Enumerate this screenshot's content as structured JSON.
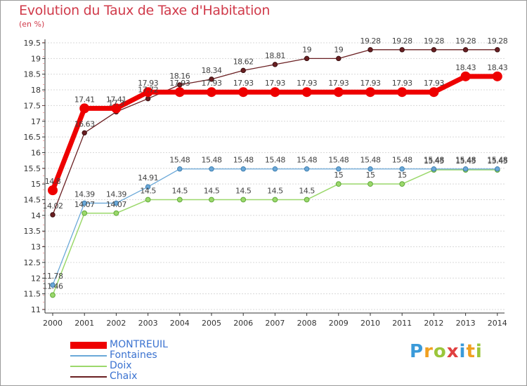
{
  "title": "Evolution du Taux de Taxe d'Habitation",
  "unit": "(en %)",
  "logo": {
    "text": "Proxiti",
    "letters": [
      {
        "ch": "P",
        "color": "#3a9ad9"
      },
      {
        "ch": "r",
        "color": "#f0a020"
      },
      {
        "ch": "o",
        "color": "#9bc63b"
      },
      {
        "ch": "x",
        "color": "#e04040"
      },
      {
        "ch": "i",
        "color": "#3a9ad9"
      },
      {
        "ch": "t",
        "color": "#f0a020"
      },
      {
        "ch": "i",
        "color": "#9bc63b"
      }
    ]
  },
  "chart_data": {
    "type": "line",
    "title": "Evolution du Taux de Taxe d'Habitation",
    "ylabel": "(en %)",
    "xlabel": "",
    "ylim": [
      11,
      19.5
    ],
    "yticks": [
      11,
      11.5,
      12,
      12.5,
      13,
      13.5,
      14,
      14.5,
      15,
      15.5,
      16,
      16.5,
      17,
      17.5,
      18,
      18.5,
      19,
      19.5
    ],
    "categories": [
      "2000",
      "2001",
      "2002",
      "2003",
      "2004",
      "2005",
      "2006",
      "2007",
      "2008",
      "2009",
      "2010",
      "2011",
      "2012",
      "2013",
      "2014"
    ],
    "grid": "horizontal dashed",
    "legend_position": "bottom-left",
    "series": [
      {
        "name": "Chaix",
        "color": "#6a1f22",
        "values": [
          14.02,
          16.63,
          17.3,
          17.72,
          18.16,
          18.34,
          18.62,
          18.81,
          19,
          19,
          19.28,
          19.28,
          19.28,
          19.28,
          19.28
        ],
        "labels": [
          "14.02",
          "16.63",
          "17.3",
          "17.72",
          "18.16",
          "18.34",
          "18.62",
          "18.81",
          "19",
          "19",
          "19.28",
          "19.28",
          "19.28",
          "19.28",
          "19.28"
        ]
      },
      {
        "name": "Doix",
        "color": "#9bd86b",
        "values": [
          11.46,
          14.07,
          14.07,
          14.5,
          14.5,
          14.5,
          14.5,
          14.5,
          14.5,
          15,
          15,
          15,
          15.45,
          15.45,
          15.45
        ],
        "labels": [
          "11.46",
          "14.07",
          "14.07",
          "14.5",
          "14.5",
          "14.5",
          "14.5",
          "14.5",
          "14.5",
          "15",
          "15",
          "15",
          "15.45",
          "15.45",
          "15.45"
        ]
      },
      {
        "name": "Fontaines",
        "color": "#6aa8d8",
        "values": [
          11.78,
          14.39,
          14.39,
          14.91,
          15.48,
          15.48,
          15.48,
          15.48,
          15.48,
          15.48,
          15.48,
          15.48,
          15.48,
          15.48,
          15.48
        ],
        "labels": [
          "11.78",
          "14.39",
          "14.39",
          "14.91",
          "15.48",
          "15.48",
          "15.48",
          "15.48",
          "15.48",
          "15.48",
          "15.48",
          "15.48",
          "15.48",
          "15.48",
          "15.48"
        ]
      },
      {
        "name": "MONTREUIL",
        "color": "#ee0000",
        "values": [
          14.8,
          17.41,
          17.41,
          17.93,
          17.93,
          17.93,
          17.93,
          17.93,
          17.93,
          17.93,
          17.93,
          17.93,
          17.93,
          18.43,
          18.43
        ],
        "labels": [
          "14.8",
          "17.41",
          "17.41",
          "17.93",
          "17.93",
          "17.93",
          "17.93",
          "17.93",
          "17.93",
          "17.93",
          "17.93",
          "17.93",
          "17.93",
          "18.43",
          "18.43"
        ]
      }
    ],
    "legend": [
      "MONTREUIL",
      "Fontaines",
      "Doix",
      "Chaix"
    ]
  }
}
